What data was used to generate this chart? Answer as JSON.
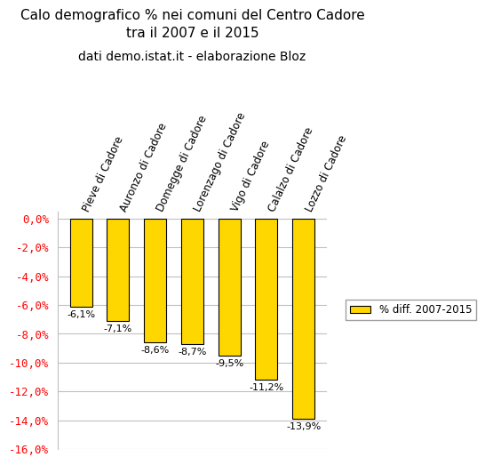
{
  "title": "Calo demografico % nei comuni del Centro Cadore\ntra il 2007 e il 2015",
  "subtitle": "dati demo.istat.it - elaborazione Bloz",
  "categories": [
    "Pieve di Cadore",
    "Auronzo di Cadore",
    "Domegge di Cadore",
    "Lorenzago di Cadore",
    "Vigo di Cadore",
    "Calalzo di Cadore",
    "Lozzo di Cadore"
  ],
  "values": [
    -6.1,
    -7.1,
    -8.6,
    -8.7,
    -9.5,
    -11.2,
    -13.9
  ],
  "bar_color": "#FFD700",
  "bar_edge_color": "#000000",
  "bar_labels": [
    "-6,1%",
    "-7,1%",
    "-8,6%",
    "-8,7%",
    "-9,5%",
    "-11,2%",
    "-13,9%"
  ],
  "ylim": [
    -16.0,
    0.5
  ],
  "yticks": [
    0.0,
    -2.0,
    -4.0,
    -6.0,
    -8.0,
    -10.0,
    -12.0,
    -14.0,
    -16.0
  ],
  "ytick_labels": [
    "0,0%",
    "-2,0%",
    "-4,0%",
    "-6,0%",
    "-8,0%",
    "-10,0%",
    "-12,0%",
    "-14,0%",
    "-16,0%"
  ],
  "legend_label": "% diff. 2007-2015",
  "title_fontsize": 11,
  "subtitle_fontsize": 10,
  "tick_label_color": "#FF0000",
  "background_color": "#FFFFFF",
  "grid_color": "#C0C0C0"
}
